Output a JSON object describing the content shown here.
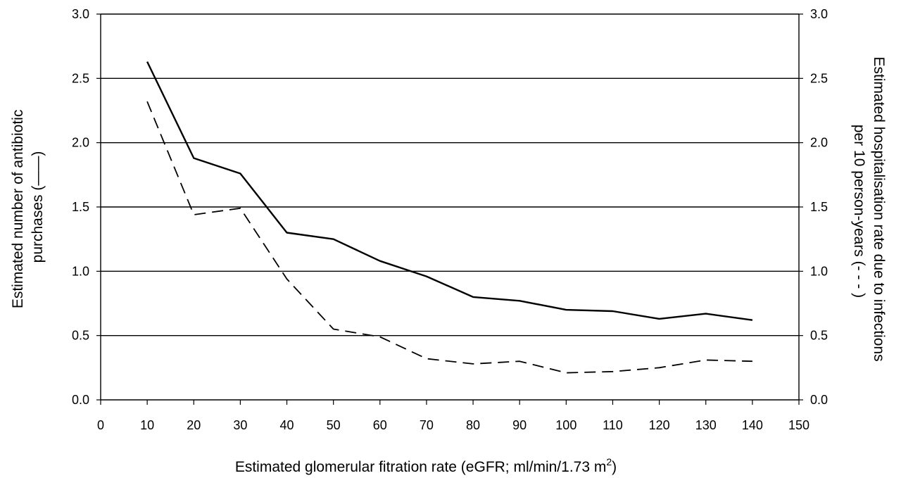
{
  "chart_data": {
    "type": "line",
    "title": "",
    "xlabel": "Estimated glomerular fitration rate (eGFR; ml/min/1.73 m",
    "xlabel_sup": "2",
    "xlabel_end": ")",
    "ylabel_left_line1": "Estimated number of antibiotic",
    "ylabel_left_line2": "purchases (——)",
    "ylabel_right_line1": "Estimated hospitalisation rate due to infections",
    "ylabel_right_line2": "per 10 person-years (- - - )",
    "xlim": [
      0,
      150
    ],
    "ylim": [
      0,
      3.0
    ],
    "grid": true,
    "x_ticks": [
      "0",
      "10",
      "20",
      "30",
      "40",
      "50",
      "60",
      "70",
      "80",
      "90",
      "100",
      "110",
      "120",
      "130",
      "140",
      "150"
    ],
    "y_ticks": [
      "0.0",
      "0.5",
      "1.0",
      "1.5",
      "2.0",
      "2.5",
      "3.0"
    ],
    "x": [
      10,
      20,
      30,
      40,
      50,
      60,
      70,
      80,
      90,
      100,
      110,
      120,
      130,
      140
    ],
    "series": [
      {
        "axis": "left",
        "style": "solid",
        "color": "#000000",
        "values": [
          2.63,
          1.88,
          1.76,
          1.3,
          1.25,
          1.08,
          0.96,
          0.8,
          0.77,
          0.7,
          0.69,
          0.63,
          0.67,
          0.62
        ]
      },
      {
        "axis": "right",
        "style": "dashed",
        "color": "#000000",
        "values": [
          2.32,
          1.44,
          1.49,
          0.94,
          0.55,
          0.49,
          0.32,
          0.28,
          0.3,
          0.21,
          0.22,
          0.25,
          0.31,
          0.3
        ]
      }
    ]
  }
}
